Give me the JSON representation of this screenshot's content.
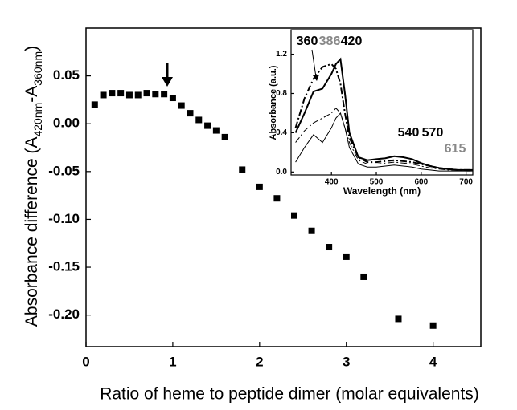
{
  "chart_data": [
    {
      "type": "scatter",
      "xlabel": "Ratio of heme to peptide dimer (molar equivalents)",
      "ylabel": "Absorbance difference (A420nm-A360nm)",
      "x": [
        0.1,
        0.2,
        0.3,
        0.4,
        0.5,
        0.6,
        0.7,
        0.8,
        0.9,
        1.0,
        1.1,
        1.2,
        1.3,
        1.4,
        1.5,
        1.6,
        1.8,
        2.0,
        2.2,
        2.4,
        2.6,
        2.8,
        3.0,
        3.2,
        3.6,
        4.0
      ],
      "values": [
        0.02,
        0.03,
        0.032,
        0.032,
        0.03,
        0.03,
        0.032,
        0.031,
        0.031,
        0.027,
        0.019,
        0.011,
        0.004,
        -0.002,
        -0.007,
        -0.014,
        -0.048,
        -0.066,
        -0.078,
        -0.096,
        -0.112,
        -0.129,
        -0.139,
        -0.16,
        -0.204,
        -0.211
      ],
      "color": "#000000",
      "xlim": [
        0,
        4.55
      ],
      "ylim": [
        -0.233,
        0.1
      ],
      "xticks": [
        0,
        1,
        2,
        3,
        4
      ],
      "yticks": [
        0.05,
        {
          "value": 0,
          "label": "0.00"
        },
        -0.05,
        {
          "value": -0.1,
          "label": "-0.10"
        },
        -0.15,
        {
          "value": -0.2,
          "label": "-0.20"
        }
      ]
    },
    {
      "type": "line",
      "xlabel": "Wavelength (nm)",
      "ylabel": "Absorbance (a.u.)",
      "x": [
        320,
        340,
        360,
        380,
        400,
        410,
        420,
        430,
        440,
        460,
        480,
        500,
        520,
        540,
        560,
        580,
        600,
        620,
        640,
        660,
        680,
        700,
        715
      ],
      "series": [
        {
          "color": "#000000",
          "linestyle": "solid",
          "linewidth": 2,
          "values": [
            0.4,
            0.6,
            0.82,
            0.85,
            1.0,
            1.1,
            1.15,
            0.8,
            0.4,
            0.15,
            0.12,
            0.13,
            0.14,
            0.16,
            0.15,
            0.13,
            0.09,
            0.06,
            0.04,
            0.03,
            0.02,
            0.02,
            0.02
          ]
        },
        {
          "color": "#000000",
          "linestyle": "dashdot",
          "linewidth": 2,
          "values": [
            0.45,
            0.75,
            0.95,
            1.07,
            1.1,
            1.05,
            0.9,
            0.6,
            0.35,
            0.15,
            0.1,
            0.1,
            0.11,
            0.12,
            0.11,
            0.1,
            0.08,
            0.06,
            0.04,
            0.03,
            0.02,
            0.02,
            0.02
          ]
        },
        {
          "color": "#000000",
          "linestyle": "dashdot",
          "linewidth": 1,
          "values": [
            0.3,
            0.42,
            0.5,
            0.55,
            0.6,
            0.65,
            0.6,
            0.45,
            0.3,
            0.12,
            0.08,
            0.08,
            0.09,
            0.1,
            0.09,
            0.08,
            0.06,
            0.04,
            0.03,
            0.02,
            0.02,
            0.01,
            0.01
          ]
        },
        {
          "color": "#000000",
          "linestyle": "solid",
          "linewidth": 1,
          "values": [
            0.1,
            0.25,
            0.38,
            0.3,
            0.45,
            0.55,
            0.6,
            0.45,
            0.25,
            0.08,
            0.05,
            0.05,
            0.06,
            0.07,
            0.06,
            0.05,
            0.03,
            0.02,
            0.01,
            0.01,
            0.01,
            0.01,
            0.01
          ]
        }
      ],
      "annotations": [
        {
          "text": "360",
          "color": "#000000"
        },
        {
          "text": "386",
          "color": "#888888"
        },
        {
          "text": "420",
          "color": "#000000"
        },
        {
          "text": "540",
          "color": "#000000"
        },
        {
          "text": "570",
          "color": "#000000"
        },
        {
          "text": "615",
          "color": "#888888"
        }
      ],
      "xlim": [
        310,
        715
      ],
      "ylim": [
        -0.03,
        1.45
      ],
      "xticks": [
        400,
        500,
        600,
        700
      ],
      "yticks": [
        {
          "value": 0,
          "label": "0.0"
        },
        0.4,
        0.8,
        1.2
      ]
    }
  ]
}
